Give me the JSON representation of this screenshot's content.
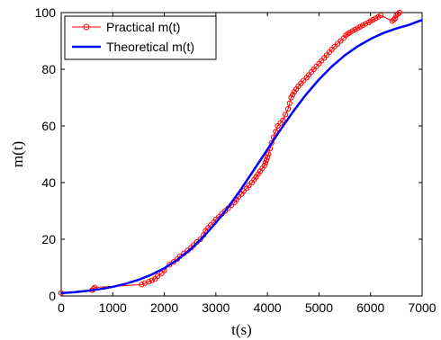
{
  "chart_data": {
    "type": "line",
    "xlabel": "t(s)",
    "ylabel": "m(t)",
    "xlim": [
      0,
      7000
    ],
    "ylim": [
      0,
      100
    ],
    "xticks": [
      0,
      1000,
      2000,
      3000,
      4000,
      5000,
      6000,
      7000
    ],
    "yticks": [
      0,
      20,
      40,
      60,
      80,
      100
    ],
    "grid": false,
    "legend_position": "top-left",
    "series": [
      {
        "name": "Practical m(t)",
        "color": "#ff0000",
        "marker": "circle",
        "x": [
          0,
          600,
          630,
          650,
          1560,
          1620,
          1700,
          1760,
          1820,
          1870,
          1950,
          2000,
          2100,
          2180,
          2250,
          2300,
          2380,
          2450,
          2520,
          2570,
          2630,
          2700,
          2760,
          2800,
          2850,
          2900,
          2960,
          3000,
          3060,
          3120,
          3180,
          3240,
          3300,
          3360,
          3400,
          3440,
          3500,
          3540,
          3600,
          3640,
          3700,
          3740,
          3780,
          3820,
          3860,
          3900,
          3940,
          3960,
          3980,
          4000,
          4020,
          4050,
          4080,
          4120,
          4160,
          4200,
          4250,
          4300,
          4350,
          4400,
          4430,
          4460,
          4490,
          4520,
          4560,
          4600,
          4650,
          4700,
          4760,
          4800,
          4850,
          4900,
          4950,
          5000,
          5050,
          5100,
          5150,
          5200,
          5250,
          5300,
          5360,
          5420,
          5480,
          5520,
          5560,
          5600,
          5650,
          5700,
          5750,
          5800,
          5850,
          5900,
          5960,
          6000,
          6050,
          6100,
          6150,
          6200,
          6420,
          6450,
          6480,
          6500,
          6530,
          6560
        ],
        "y": [
          1.0,
          2.0,
          2.5,
          3.0,
          4.0,
          4.5,
          5.0,
          5.5,
          6.0,
          7.0,
          8.0,
          9.0,
          11.0,
          12.0,
          13.0,
          14.0,
          15.0,
          16.0,
          17.0,
          18.0,
          19.0,
          20.0,
          21.5,
          23.0,
          24.0,
          25.0,
          26.0,
          27.0,
          28.0,
          29.0,
          30.0,
          31.0,
          32.0,
          33.0,
          34.0,
          35.0,
          36.0,
          37.0,
          38.0,
          39.0,
          40.0,
          41.0,
          42.0,
          43.0,
          44.0,
          45.0,
          46.0,
          47.0,
          48.0,
          49.0,
          50.0,
          52.0,
          54.0,
          56.0,
          58.0,
          60.0,
          61.0,
          62.0,
          64.0,
          66.0,
          68.0,
          70.0,
          71.0,
          72.0,
          73.0,
          74.0,
          75.0,
          76.0,
          77.0,
          78.0,
          79.0,
          80.0,
          81.0,
          82.0,
          83.0,
          84.0,
          85.0,
          86.0,
          87.0,
          88.0,
          89.0,
          90.0,
          91.0,
          92.0,
          92.5,
          93.0,
          93.5,
          94.0,
          94.5,
          95.0,
          95.5,
          96.0,
          96.5,
          97.0,
          97.5,
          98.0,
          98.5,
          99.0,
          97.0,
          97.5,
          98.0,
          99.0,
          99.5,
          100.0
        ]
      },
      {
        "name": "Theoretical m(t)",
        "color": "#0000ff",
        "marker": "none",
        "curve": "logistic",
        "x": [
          0,
          250,
          500,
          750,
          1000,
          1250,
          1500,
          1750,
          2000,
          2250,
          2500,
          2750,
          3000,
          3250,
          3500,
          3750,
          4000,
          4250,
          4500,
          4750,
          5000,
          5250,
          5500,
          5750,
          6000,
          6250,
          6500,
          6750,
          7000
        ],
        "y": [
          1.0,
          1.3,
          1.8,
          2.4,
          3.2,
          4.3,
          5.7,
          7.5,
          9.8,
          12.7,
          16.3,
          20.7,
          25.8,
          31.6,
          38.0,
          44.8,
          51.7,
          58.6,
          65.1,
          71.1,
          76.4,
          81.0,
          84.9,
          88.1,
          90.7,
          92.8,
          94.4,
          95.7,
          97.4
        ]
      }
    ]
  }
}
